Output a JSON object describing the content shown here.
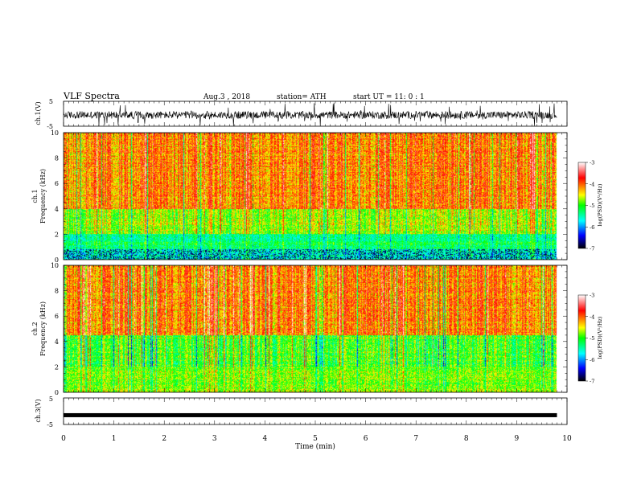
{
  "header": {
    "title": "VLF  Spectra",
    "date": "Aug.3  , 2018",
    "station": "station= ATH",
    "start_ut": "start  UT  =    11: 0   : 1"
  },
  "chart_data": {
    "type": "heatmap",
    "x": {
      "label": "Time  (min)",
      "ticks": [
        "0",
        "1",
        "2",
        "3",
        "4",
        "5",
        "6",
        "7",
        "8",
        "9",
        "10"
      ],
      "range": [
        0,
        10
      ],
      "data_end": 9.8
    },
    "panels": [
      {
        "id": "ch1-waveform",
        "type": "line",
        "ylabel": "ch.1(V)",
        "yticks": [
          "5",
          "-5"
        ],
        "ylim": [
          -5,
          5
        ],
        "description_mean": -0.5,
        "amplitude_typical": 1.5
      },
      {
        "id": "ch1-spectrogram",
        "type": "heatmap",
        "ylabel_top": "ch.1",
        "ylabel": "Frequency  (kHz)",
        "yticks": [
          "10",
          "8",
          "6",
          "4",
          "2",
          "0"
        ],
        "ylim": [
          0,
          10
        ],
        "band_levels_kHz_logPSD": [
          {
            "f_from": 0.0,
            "f_to": 0.8,
            "level": -5.6
          },
          {
            "f_from": 0.8,
            "f_to": 2.0,
            "level": -5.3
          },
          {
            "f_from": 2.0,
            "f_to": 4.0,
            "level": -4.7
          },
          {
            "f_from": 4.0,
            "f_to": 10.0,
            "level": -4.1
          }
        ]
      },
      {
        "id": "ch2-spectrogram",
        "type": "heatmap",
        "ylabel_top": "ch.2",
        "ylabel": "Frequency  (kHz)",
        "yticks": [
          "10",
          "8",
          "6",
          "4",
          "2",
          "0"
        ],
        "ylim": [
          0,
          10
        ],
        "band_levels_kHz_logPSD": [
          {
            "f_from": 0.0,
            "f_to": 2.0,
            "level": -4.8
          },
          {
            "f_from": 2.0,
            "f_to": 4.5,
            "level": -5.0
          },
          {
            "f_from": 4.5,
            "f_to": 10.0,
            "level": -4.1
          }
        ]
      },
      {
        "id": "ch3-waveform",
        "type": "line",
        "ylabel": "ch.3(V)",
        "yticks": [
          "5",
          "-5"
        ],
        "ylim": [
          -5,
          5
        ],
        "description_mean": -1.5,
        "amplitude_typical": 0.3
      }
    ],
    "colorbar": {
      "label": "log(PSD)(V²/Hz)",
      "ticks": [
        "-3",
        "-4",
        "-5",
        "-6",
        "-7"
      ],
      "range": [
        -7,
        -3
      ],
      "colormap": [
        "#000000",
        "#0000ff",
        "#00ffff",
        "#00ff00",
        "#ffff00",
        "#ff8000",
        "#ff0000",
        "#ffffff"
      ]
    }
  },
  "colors": {
    "background": "#ffffff",
    "axes": "#000000",
    "waveform": "#000000"
  }
}
